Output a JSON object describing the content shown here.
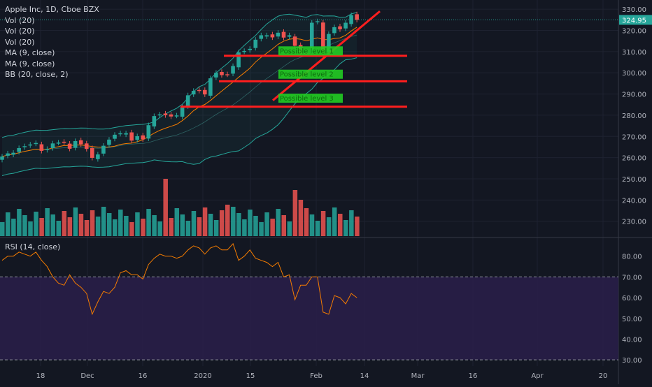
{
  "legend": {
    "title": "Apple Inc, 1D, Cboe BZX",
    "rows": [
      "Vol (20)",
      "Vol (20)",
      "Vol (20)",
      "MA (9, close)",
      "MA (9, close)",
      "BB (20, close, 2)"
    ],
    "rsi": "RSI (14, close)"
  },
  "price_label": "324.95",
  "colors": {
    "background": "#131722",
    "up": "#26a69a",
    "down": "#ef5350",
    "ma": "#f57c00",
    "bb": "#26a69a",
    "drawing": "#ff1e1e",
    "level_box": "#22cc22",
    "rsi_line": "#f57c00",
    "rsi_band": "#2a1f4a"
  },
  "chart_data": [
    {
      "type": "candlestick",
      "title": "Apple Inc, 1D, Cboe BZX",
      "ylim": [
        223,
        333
      ],
      "yticks": [
        230,
        240,
        250,
        260,
        270,
        280,
        290,
        300,
        310,
        320,
        330
      ],
      "ytick_labels": [
        "230.00",
        "240.00",
        "250.00",
        "260.00",
        "270.00",
        "280.00",
        "290.00",
        "300.00",
        "310.00",
        "320.00",
        "330.00"
      ],
      "xticks": [
        "18",
        "Dec",
        "16",
        "2020",
        "15",
        "Feb",
        "14",
        "Mar",
        "16",
        "Apr",
        "20"
      ],
      "last_price": 324.95,
      "close": [
        260.5,
        262.0,
        262.3,
        264.5,
        265.4,
        266.2,
        266.9,
        263.2,
        264.1,
        266.7,
        267.1,
        267.2,
        264.2,
        267.8,
        266.3,
        264.1,
        259.9,
        261.5,
        265.6,
        268.5,
        270.8,
        271.5,
        271.5,
        268.0,
        270.1,
        268.6,
        275.3,
        279.6,
        280.4,
        280.0,
        279.4,
        279.9,
        283.8,
        289.4,
        291.5,
        291.5,
        289.8,
        297.4,
        300.0,
        298.9,
        299.2,
        303.2,
        309.6,
        310.3,
        311.3,
        315.6,
        317.7,
        317.7,
        316.7,
        318.9,
        316.6,
        317.7,
        312.7,
        309.0,
        308.9,
        323.6,
        324.3,
        309.5,
        318.3,
        321.5,
        320.5,
        323.6,
        327.2,
        324.95
      ],
      "rsi": [
        78,
        80,
        80,
        82,
        81,
        80,
        82,
        78,
        75,
        70,
        67,
        66,
        71,
        67,
        65,
        62,
        52,
        58,
        63,
        62,
        65,
        72,
        73,
        71,
        71,
        69,
        76,
        79,
        81,
        80,
        80,
        79,
        80,
        83,
        85,
        84,
        81,
        84,
        85,
        83,
        83,
        86,
        78,
        80,
        83,
        79,
        78,
        77,
        75,
        77,
        70,
        71,
        59,
        66,
        66,
        70,
        70,
        53,
        52,
        61,
        60,
        57,
        62,
        60
      ],
      "annotations": [
        "Possible level 1",
        "Possible level 2",
        "Possible level 3"
      ]
    },
    {
      "type": "line",
      "title": "RSI (14, close)",
      "ylim": [
        27,
        88
      ],
      "yticks": [
        30,
        40,
        50,
        60,
        70,
        80
      ],
      "ytick_labels": [
        "30.00",
        "40.00",
        "50.00",
        "60.00",
        "70.00",
        "80.00"
      ],
      "bands": [
        30,
        70
      ]
    }
  ]
}
